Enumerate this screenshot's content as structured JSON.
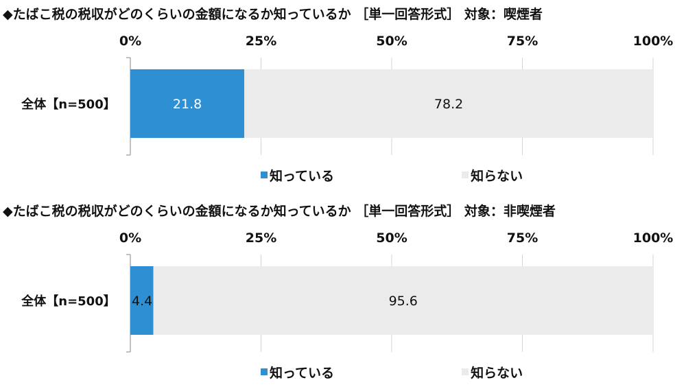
{
  "chart_data": [
    {
      "type": "bar",
      "orientation": "horizontal",
      "stacked": "percent",
      "title": "◆たばこ税の税収がどのくらいの金額になるか知っているか ［単一回答形式］ 対象：喫煙者",
      "categories": [
        "全体【n=500】"
      ],
      "series": [
        {
          "name": "知っている",
          "values": [
            21.8
          ],
          "color": "#2f8fd3"
        },
        {
          "name": "知らない",
          "values": [
            78.2
          ],
          "color": "#ebebeb"
        }
      ],
      "xlim": [
        0,
        100
      ],
      "xticks": [
        "0%",
        "25%",
        "50%",
        "75%",
        "100%"
      ],
      "grid": true,
      "legend": "bottom"
    },
    {
      "type": "bar",
      "orientation": "horizontal",
      "stacked": "percent",
      "title": "◆たばこ税の税収がどのくらいの金額になるか知っているか ［単一回答形式］ 対象：非喫煙者",
      "categories": [
        "全体【n=500】"
      ],
      "series": [
        {
          "name": "知っている",
          "values": [
            4.4
          ],
          "color": "#2f8fd3"
        },
        {
          "name": "知らない",
          "values": [
            95.6
          ],
          "color": "#ebebeb"
        }
      ],
      "xlim": [
        0,
        100
      ],
      "xticks": [
        "0%",
        "25%",
        "50%",
        "75%",
        "100%"
      ],
      "grid": true,
      "legend": "bottom"
    }
  ]
}
